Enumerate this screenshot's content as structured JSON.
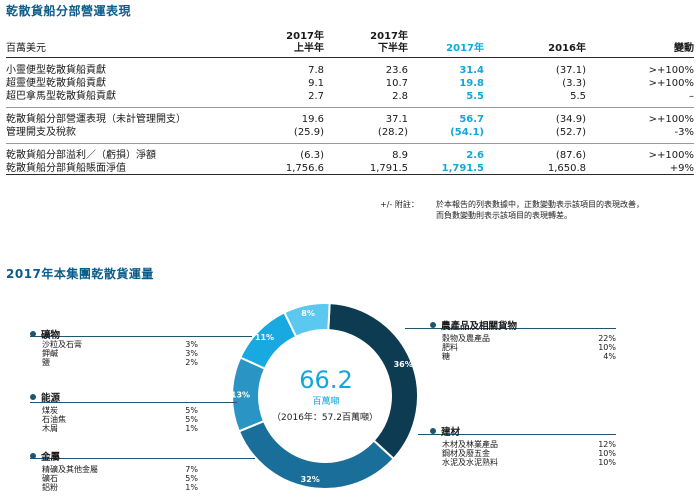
{
  "perf": {
    "title": "乾散貨船分部營運表現",
    "unit_label": "百萬美元",
    "columns": [
      {
        "line1": "2017年",
        "line2": "上半年"
      },
      {
        "line1": "2017年",
        "line2": "下半年"
      },
      {
        "line1": "",
        "line2": "2017年"
      },
      {
        "line1": "",
        "line2": "2016年"
      },
      {
        "line1": "",
        "line2": "變動"
      }
    ],
    "rows": [
      {
        "label": "小靈便型乾散貨船貢獻",
        "v": [
          "7.8",
          "23.6",
          "31.4",
          "(37.1)",
          ">+100%"
        ]
      },
      {
        "label": "超靈便型乾散貨船貢獻",
        "v": [
          "9.1",
          "10.7",
          "19.8",
          "(3.3)",
          ">+100%"
        ]
      },
      {
        "label": "超巴拿馬型乾散貨船貢獻",
        "v": [
          "2.7",
          "2.8",
          "5.5",
          "5.5",
          "–"
        ]
      },
      {
        "label": "乾散貨船分部營運表現（未計管理開支）",
        "v": [
          "19.6",
          "37.1",
          "56.7",
          "(34.9)",
          ">+100%"
        ]
      },
      {
        "label": "管理開支及稅款",
        "v": [
          "(25.9)",
          "(28.2)",
          "(54.1)",
          "(52.7)",
          "-3%"
        ]
      },
      {
        "label": "乾散貨船分部溢利／（虧損）淨額",
        "v": [
          "(6.3)",
          "8.9",
          "2.6",
          "(87.6)",
          ">+100%"
        ]
      },
      {
        "label": "乾散貨船分部貨船賬面淨值",
        "v": [
          "1,756.6",
          "1,791.5",
          "1,791.5",
          "1,650.8",
          "+9%"
        ]
      }
    ],
    "note_label": "+/- 附註：",
    "note_line1": "於本報告的列表數據中，正數變動表示該項目的表現改善，",
    "note_line2": "而負數變動則表示該項目的表現轉差。"
  },
  "volumes": {
    "title": "2017年本集團乾散貨運量",
    "total": "66.2",
    "unit": "百萬噸",
    "prior": "（2016年：57.2百萬噸）",
    "segments": [
      {
        "name": "農產品及相關貨物",
        "pct": 36,
        "label": "36%",
        "color": "#0d3b52"
      },
      {
        "name": "建材",
        "pct": 32,
        "label": "32%",
        "color": "#1a6f9a"
      },
      {
        "name": "金屬",
        "pct": 13,
        "label": "13%",
        "color": "#2a95c4"
      },
      {
        "name": "能源",
        "pct": 11,
        "label": "11%",
        "color": "#17a9df"
      },
      {
        "name": "礦物",
        "pct": 8,
        "label": "8%",
        "color": "#5ac8ef"
      }
    ],
    "legend": {
      "minerals": {
        "title": "礦物",
        "items": [
          {
            "n": "沙粒及石膏",
            "p": "3%"
          },
          {
            "n": "鉀鹹",
            "p": "3%"
          },
          {
            "n": "鹽",
            "p": "2%"
          }
        ]
      },
      "energy": {
        "title": "能源",
        "items": [
          {
            "n": "煤炭",
            "p": "5%"
          },
          {
            "n": "石油焦",
            "p": "5%"
          },
          {
            "n": "木屑",
            "p": "1%"
          }
        ]
      },
      "metals": {
        "title": "金屬",
        "items": [
          {
            "n": "精礦及其他金屬",
            "p": "7%"
          },
          {
            "n": "礦石",
            "p": "5%"
          },
          {
            "n": "鋁粉",
            "p": "1%"
          }
        ]
      },
      "agri": {
        "title": "農產品及相關貨物",
        "items": [
          {
            "n": "穀物及農產品",
            "p": "22%"
          },
          {
            "n": "肥料",
            "p": "10%"
          },
          {
            "n": "糖",
            "p": "4%"
          }
        ]
      },
      "construction": {
        "title": "建材",
        "items": [
          {
            "n": "木材及林業產品",
            "p": "12%"
          },
          {
            "n": "鋼材及廢五金",
            "p": "10%"
          },
          {
            "n": "水泥及水泥熟料",
            "p": "10%"
          }
        ]
      }
    }
  }
}
